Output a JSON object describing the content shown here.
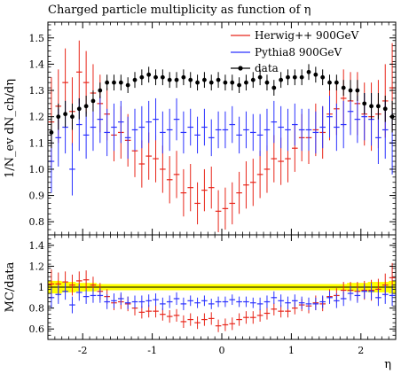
{
  "chart_data": [
    {
      "type": "scatter",
      "title": "Charged particle multiplicity as function of η",
      "ylabel": "1/N_ev dN_ch/dη",
      "xlabel": "",
      "xlim": [
        -2.5,
        2.5
      ],
      "ylim": [
        0.75,
        1.56
      ],
      "y_ticks": [
        "0.8",
        "0.9",
        "1.0",
        "1.1",
        "1.2",
        "1.3",
        "1.4",
        "1.5"
      ],
      "legend_position": "top-right",
      "grid": false,
      "series": [
        {
          "name": "Herwig++ 900GeV",
          "color": "#e8261a",
          "x": [
            -2.45,
            -2.35,
            -2.25,
            -2.15,
            -2.05,
            -1.95,
            -1.85,
            -1.75,
            -1.65,
            -1.55,
            -1.45,
            -1.35,
            -1.25,
            -1.15,
            -1.05,
            -0.95,
            -0.85,
            -0.75,
            -0.65,
            -0.55,
            -0.45,
            -0.35,
            -0.25,
            -0.15,
            -0.05,
            0.05,
            0.15,
            0.25,
            0.35,
            0.45,
            0.55,
            0.65,
            0.75,
            0.85,
            0.95,
            1.05,
            1.15,
            1.25,
            1.35,
            1.45,
            1.55,
            1.65,
            1.75,
            1.85,
            1.95,
            2.05,
            2.15,
            2.25,
            2.35,
            2.45
          ],
          "y": [
            1.18,
            1.24,
            1.33,
            1.22,
            1.37,
            1.33,
            1.29,
            1.25,
            1.21,
            1.13,
            1.14,
            1.11,
            1.07,
            1.02,
            1.05,
            1.04,
            1.0,
            0.96,
            0.98,
            0.91,
            0.93,
            0.87,
            0.92,
            0.93,
            0.84,
            0.85,
            0.87,
            0.91,
            0.94,
            0.95,
            0.98,
            1.0,
            1.04,
            1.03,
            1.04,
            1.08,
            1.12,
            1.12,
            1.15,
            1.14,
            1.21,
            1.23,
            1.27,
            1.26,
            1.25,
            1.21,
            1.2,
            1.21,
            1.26,
            1.31
          ],
          "err": [
            0.17,
            0.14,
            0.13,
            0.13,
            0.12,
            0.12,
            0.11,
            0.11,
            0.1,
            0.1,
            0.1,
            0.1,
            0.1,
            0.09,
            0.09,
            0.09,
            0.09,
            0.09,
            0.09,
            0.09,
            0.09,
            0.08,
            0.08,
            0.08,
            0.08,
            0.08,
            0.08,
            0.08,
            0.09,
            0.09,
            0.09,
            0.09,
            0.09,
            0.09,
            0.09,
            0.09,
            0.09,
            0.1,
            0.1,
            0.1,
            0.1,
            0.1,
            0.11,
            0.11,
            0.12,
            0.12,
            0.13,
            0.13,
            0.14,
            0.17
          ]
        },
        {
          "name": "Pythia8 900GeV",
          "color": "#2b32ff",
          "x": [
            -2.45,
            -2.35,
            -2.25,
            -2.15,
            -2.05,
            -1.95,
            -1.85,
            -1.75,
            -1.65,
            -1.55,
            -1.45,
            -1.35,
            -1.25,
            -1.15,
            -1.05,
            -0.95,
            -0.85,
            -0.75,
            -0.65,
            -0.55,
            -0.45,
            -0.35,
            -0.25,
            -0.15,
            -0.05,
            0.05,
            0.15,
            0.25,
            0.35,
            0.45,
            0.55,
            0.65,
            0.75,
            0.85,
            0.95,
            1.05,
            1.15,
            1.25,
            1.35,
            1.45,
            1.55,
            1.65,
            1.75,
            1.85,
            1.95,
            2.05,
            2.15,
            2.25,
            2.35,
            2.45
          ],
          "y": [
            1.03,
            1.12,
            1.16,
            1.0,
            1.17,
            1.13,
            1.16,
            1.19,
            1.14,
            1.16,
            1.18,
            1.12,
            1.15,
            1.16,
            1.18,
            1.19,
            1.14,
            1.15,
            1.19,
            1.14,
            1.16,
            1.13,
            1.16,
            1.12,
            1.15,
            1.15,
            1.17,
            1.13,
            1.15,
            1.14,
            1.13,
            1.15,
            1.18,
            1.16,
            1.15,
            1.17,
            1.15,
            1.15,
            1.14,
            1.16,
            1.2,
            1.16,
            1.17,
            1.22,
            1.19,
            1.2,
            1.19,
            1.12,
            1.15,
            1.1
          ],
          "err": [
            0.12,
            0.11,
            0.1,
            0.1,
            0.1,
            0.09,
            0.09,
            0.09,
            0.09,
            0.09,
            0.08,
            0.08,
            0.08,
            0.08,
            0.08,
            0.08,
            0.08,
            0.08,
            0.08,
            0.08,
            0.07,
            0.07,
            0.07,
            0.07,
            0.07,
            0.07,
            0.07,
            0.07,
            0.07,
            0.07,
            0.08,
            0.08,
            0.08,
            0.08,
            0.08,
            0.08,
            0.08,
            0.08,
            0.08,
            0.08,
            0.08,
            0.09,
            0.09,
            0.09,
            0.09,
            0.09,
            0.1,
            0.1,
            0.11,
            0.12
          ]
        },
        {
          "name": "data",
          "color": "#000000",
          "x": [
            -2.45,
            -2.35,
            -2.25,
            -2.15,
            -2.05,
            -1.95,
            -1.85,
            -1.75,
            -1.65,
            -1.55,
            -1.45,
            -1.35,
            -1.25,
            -1.15,
            -1.05,
            -0.95,
            -0.85,
            -0.75,
            -0.65,
            -0.55,
            -0.45,
            -0.35,
            -0.25,
            -0.15,
            -0.05,
            0.05,
            0.15,
            0.25,
            0.35,
            0.45,
            0.55,
            0.65,
            0.75,
            0.85,
            0.95,
            1.05,
            1.15,
            1.25,
            1.35,
            1.45,
            1.55,
            1.65,
            1.75,
            1.85,
            1.95,
            2.05,
            2.15,
            2.25,
            2.35,
            2.45
          ],
          "y": [
            1.14,
            1.2,
            1.21,
            1.2,
            1.23,
            1.24,
            1.26,
            1.3,
            1.33,
            1.33,
            1.33,
            1.32,
            1.34,
            1.35,
            1.36,
            1.35,
            1.35,
            1.34,
            1.34,
            1.35,
            1.34,
            1.33,
            1.34,
            1.33,
            1.34,
            1.33,
            1.33,
            1.32,
            1.33,
            1.34,
            1.35,
            1.33,
            1.31,
            1.34,
            1.35,
            1.35,
            1.35,
            1.37,
            1.36,
            1.35,
            1.33,
            1.33,
            1.31,
            1.3,
            1.3,
            1.25,
            1.24,
            1.24,
            1.23,
            1.2
          ],
          "err": [
            0.06,
            0.05,
            0.05,
            0.05,
            0.04,
            0.04,
            0.04,
            0.03,
            0.03,
            0.03,
            0.03,
            0.03,
            0.03,
            0.03,
            0.03,
            0.03,
            0.03,
            0.03,
            0.03,
            0.03,
            0.03,
            0.03,
            0.03,
            0.03,
            0.03,
            0.03,
            0.03,
            0.03,
            0.03,
            0.03,
            0.03,
            0.03,
            0.03,
            0.03,
            0.03,
            0.03,
            0.03,
            0.03,
            0.03,
            0.03,
            0.03,
            0.03,
            0.03,
            0.04,
            0.04,
            0.04,
            0.05,
            0.05,
            0.05,
            0.06
          ]
        }
      ]
    },
    {
      "type": "scatter",
      "title": "",
      "ylabel": "MC/data",
      "xlabel": "η",
      "xlim": [
        -2.5,
        2.5
      ],
      "ylim": [
        0.5,
        1.5
      ],
      "y_ticks": [
        "0.6",
        "0.8",
        "1",
        "1.2",
        "1.4"
      ],
      "x_ticks": [
        "-2",
        "-1",
        "0",
        "1",
        "2"
      ],
      "band_color": "#ffff00",
      "band_halfwidth": [
        0.06,
        0.06,
        0.05,
        0.05,
        0.04,
        0.04,
        0.04,
        0.03,
        0.03,
        0.03,
        0.03,
        0.03,
        0.03,
        0.03,
        0.03,
        0.03,
        0.03,
        0.03,
        0.03,
        0.03,
        0.03,
        0.03,
        0.03,
        0.03,
        0.03,
        0.03,
        0.03,
        0.03,
        0.03,
        0.03,
        0.03,
        0.03,
        0.03,
        0.03,
        0.03,
        0.03,
        0.03,
        0.03,
        0.03,
        0.03,
        0.03,
        0.03,
        0.03,
        0.04,
        0.04,
        0.04,
        0.05,
        0.05,
        0.05,
        0.06
      ],
      "series": [
        {
          "name": "Herwig++ 900GeV",
          "color": "#e8261a",
          "x": [
            -2.45,
            -2.35,
            -2.25,
            -2.15,
            -2.05,
            -1.95,
            -1.85,
            -1.75,
            -1.65,
            -1.55,
            -1.45,
            -1.35,
            -1.25,
            -1.15,
            -1.05,
            -0.95,
            -0.85,
            -0.75,
            -0.65,
            -0.55,
            -0.45,
            -0.35,
            -0.25,
            -0.15,
            -0.05,
            0.05,
            0.15,
            0.25,
            0.35,
            0.45,
            0.55,
            0.65,
            0.75,
            0.85,
            0.95,
            1.05,
            1.15,
            1.25,
            1.35,
            1.45,
            1.55,
            1.65,
            1.75,
            1.85,
            1.95,
            2.05,
            2.15,
            2.25,
            2.35,
            2.45
          ],
          "y": [
            1.03,
            1.03,
            1.05,
            1.02,
            1.06,
            1.07,
            1.02,
            0.96,
            0.91,
            0.85,
            0.86,
            0.84,
            0.8,
            0.76,
            0.77,
            0.77,
            0.74,
            0.72,
            0.73,
            0.67,
            0.69,
            0.66,
            0.69,
            0.7,
            0.63,
            0.64,
            0.65,
            0.69,
            0.71,
            0.71,
            0.73,
            0.75,
            0.79,
            0.77,
            0.77,
            0.8,
            0.83,
            0.82,
            0.85,
            0.84,
            0.91,
            0.92,
            0.97,
            0.97,
            0.96,
            0.97,
            0.97,
            0.98,
            1.02,
            1.09
          ],
          "err": [
            0.14,
            0.11,
            0.1,
            0.1,
            0.09,
            0.09,
            0.08,
            0.08,
            0.07,
            0.07,
            0.07,
            0.07,
            0.07,
            0.06,
            0.06,
            0.06,
            0.06,
            0.06,
            0.06,
            0.06,
            0.06,
            0.06,
            0.06,
            0.06,
            0.06,
            0.06,
            0.06,
            0.06,
            0.06,
            0.06,
            0.06,
            0.06,
            0.06,
            0.06,
            0.06,
            0.06,
            0.06,
            0.07,
            0.07,
            0.07,
            0.07,
            0.07,
            0.08,
            0.08,
            0.09,
            0.09,
            0.1,
            0.1,
            0.11,
            0.14
          ]
        },
        {
          "name": "Pythia8 900GeV",
          "color": "#2b32ff",
          "x": [
            -2.45,
            -2.35,
            -2.25,
            -2.15,
            -2.05,
            -1.95,
            -1.85,
            -1.75,
            -1.65,
            -1.55,
            -1.45,
            -1.35,
            -1.25,
            -1.15,
            -1.05,
            -0.95,
            -0.85,
            -0.75,
            -0.65,
            -0.55,
            -0.45,
            -0.35,
            -0.25,
            -0.15,
            -0.05,
            0.05,
            0.15,
            0.25,
            0.35,
            0.45,
            0.55,
            0.65,
            0.75,
            0.85,
            0.95,
            1.05,
            1.15,
            1.25,
            1.35,
            1.45,
            1.55,
            1.65,
            1.75,
            1.85,
            1.95,
            2.05,
            2.15,
            2.25,
            2.35,
            2.45
          ],
          "y": [
            0.9,
            0.93,
            0.96,
            0.83,
            0.95,
            0.91,
            0.92,
            0.92,
            0.86,
            0.87,
            0.89,
            0.85,
            0.86,
            0.86,
            0.87,
            0.88,
            0.84,
            0.86,
            0.89,
            0.84,
            0.87,
            0.85,
            0.87,
            0.84,
            0.86,
            0.86,
            0.88,
            0.86,
            0.86,
            0.85,
            0.84,
            0.86,
            0.9,
            0.87,
            0.85,
            0.87,
            0.85,
            0.84,
            0.84,
            0.86,
            0.9,
            0.87,
            0.89,
            0.94,
            0.92,
            0.96,
            0.96,
            0.9,
            0.93,
            0.92
          ],
          "err": [
            0.1,
            0.09,
            0.08,
            0.08,
            0.08,
            0.07,
            0.07,
            0.07,
            0.07,
            0.07,
            0.06,
            0.06,
            0.06,
            0.06,
            0.06,
            0.06,
            0.06,
            0.06,
            0.06,
            0.06,
            0.05,
            0.05,
            0.05,
            0.05,
            0.05,
            0.05,
            0.05,
            0.05,
            0.05,
            0.05,
            0.06,
            0.06,
            0.06,
            0.06,
            0.06,
            0.06,
            0.06,
            0.06,
            0.06,
            0.06,
            0.06,
            0.07,
            0.07,
            0.07,
            0.07,
            0.07,
            0.08,
            0.08,
            0.09,
            0.1
          ]
        }
      ]
    }
  ],
  "legend": [
    {
      "label": "Herwig++ 900GeV",
      "color": "#e8261a",
      "marker": "line"
    },
    {
      "label": "Pythia8 900GeV",
      "color": "#2b32ff",
      "marker": "line"
    },
    {
      "label": "data",
      "color": "#000000",
      "marker": "dot"
    }
  ]
}
